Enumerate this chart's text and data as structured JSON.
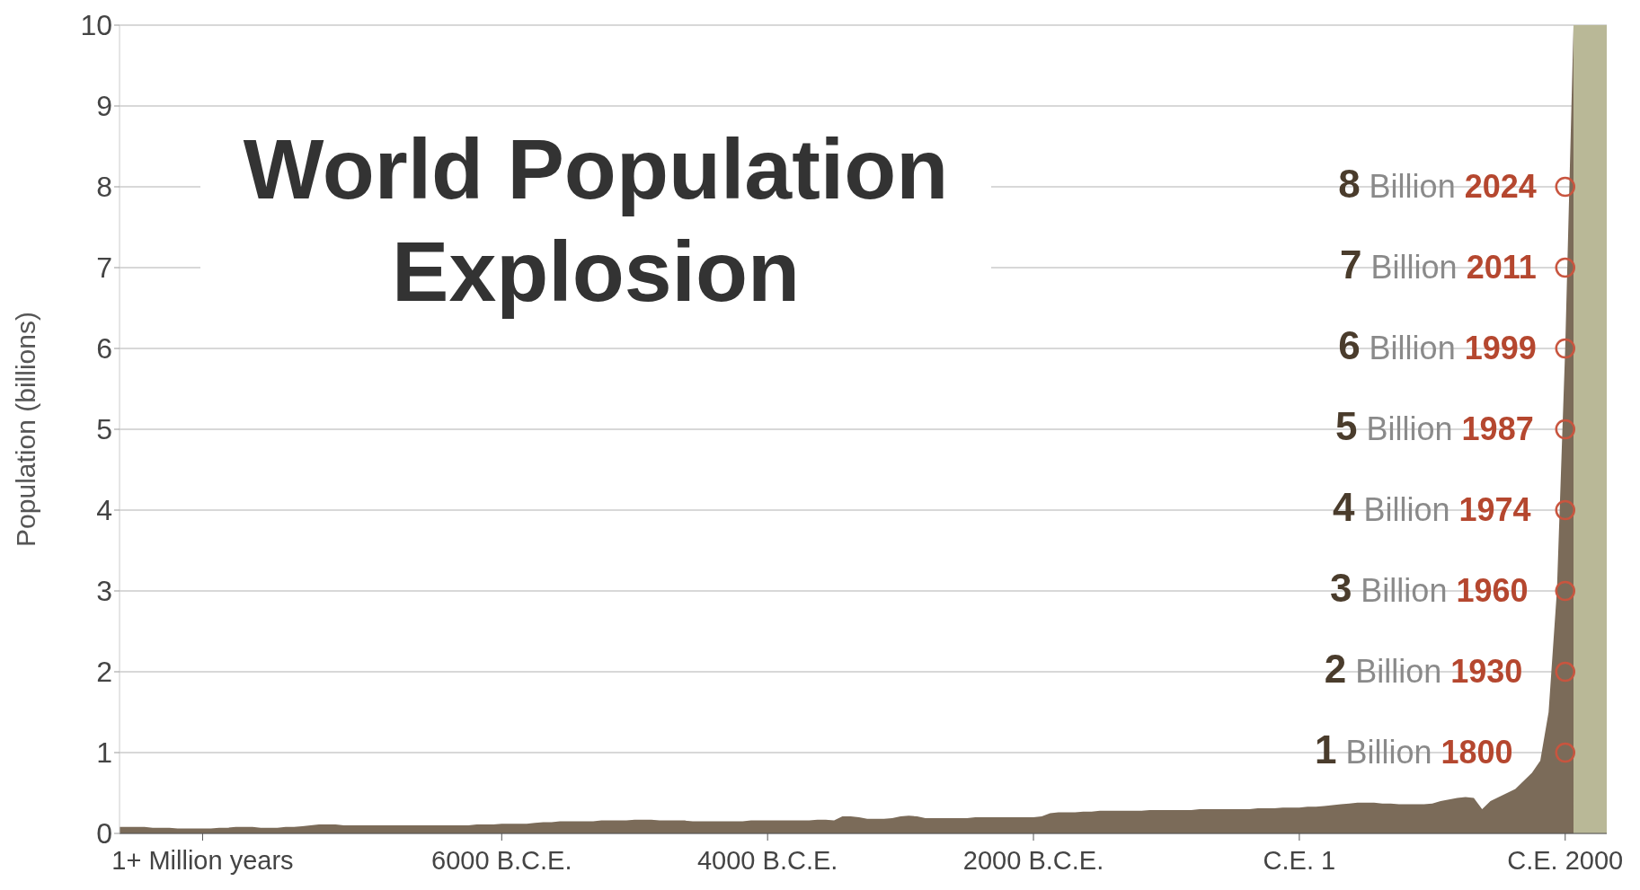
{
  "chart_data": {
    "type": "area",
    "title": "World Population Explosion",
    "ylabel": "Population (billions)",
    "categories": [
      null,
      null,
      null,
      null,
      null,
      null,
      null,
      null,
      null,
      null,
      "1+ Million years",
      null,
      null,
      null,
      null,
      null,
      null,
      null,
      null,
      null,
      null,
      null,
      null,
      null,
      null,
      null,
      null,
      null,
      null,
      null,
      null,
      null,
      null,
      null,
      null,
      null,
      null,
      null,
      null,
      null,
      null,
      null,
      null,
      null,
      null,
      null,
      "6000 B.C.E.",
      null,
      null,
      null,
      null,
      null,
      null,
      null,
      null,
      null,
      null,
      null,
      null,
      null,
      null,
      null,
      null,
      null,
      null,
      null,
      null,
      null,
      null,
      null,
      null,
      null,
      null,
      null,
      null,
      null,
      null,
      null,
      "4000 B.C.E.",
      null,
      null,
      null,
      null,
      null,
      null,
      null,
      null,
      null,
      null,
      null,
      null,
      null,
      null,
      null,
      null,
      null,
      null,
      null,
      null,
      null,
      null,
      null,
      null,
      null,
      null,
      null,
      null,
      null,
      null,
      null,
      "2000 B.C.E.",
      null,
      null,
      null,
      null,
      null,
      null,
      null,
      null,
      null,
      null,
      null,
      null,
      null,
      null,
      null,
      null,
      null,
      null,
      null,
      null,
      null,
      null,
      null,
      null,
      null,
      null,
      null,
      null,
      null,
      null,
      null,
      "C.E. 1",
      null,
      null,
      null,
      null,
      null,
      null,
      null,
      null,
      null,
      null,
      null,
      null,
      null,
      null,
      null,
      null,
      null,
      null,
      null,
      null,
      null,
      null,
      null,
      null,
      null,
      null,
      null,
      null,
      null,
      null,
      null,
      "C.E. 2000",
      null,
      null,
      null,
      null,
      null
    ],
    "series": [
      {
        "color": "#b9b897",
        "values": [
          null,
          null,
          null,
          null,
          null,
          null,
          null,
          null,
          null,
          null,
          null,
          null,
          null,
          null,
          null,
          null,
          null,
          null,
          null,
          null,
          null,
          null,
          null,
          null,
          null,
          null,
          null,
          null,
          null,
          null,
          null,
          null,
          null,
          null,
          null,
          null,
          null,
          null,
          null,
          null,
          null,
          null,
          null,
          null,
          null,
          null,
          null,
          null,
          null,
          null,
          null,
          null,
          null,
          null,
          null,
          null,
          null,
          null,
          null,
          null,
          null,
          null,
          null,
          null,
          null,
          null,
          null,
          null,
          null,
          null,
          null,
          null,
          null,
          null,
          null,
          null,
          null,
          null,
          null,
          null,
          null,
          null,
          null,
          null,
          null,
          null,
          null,
          null,
          null,
          null,
          null,
          null,
          null,
          null,
          null,
          null,
          null,
          null,
          null,
          null,
          null,
          null,
          null,
          null,
          null,
          null,
          null,
          null,
          null,
          null,
          null,
          null,
          null,
          null,
          null,
          null,
          null,
          null,
          null,
          null,
          null,
          null,
          null,
          null,
          null,
          null,
          null,
          null,
          null,
          null,
          null,
          null,
          null,
          null,
          null,
          null,
          null,
          null,
          null,
          null,
          null,
          null,
          null,
          null,
          null,
          null,
          null,
          null,
          null,
          null,
          null,
          null,
          null,
          null,
          null,
          null,
          null,
          null,
          null,
          null,
          null,
          null,
          null,
          null,
          null,
          null,
          null,
          null,
          null,
          null,
          null,
          null,
          null,
          null,
          null,
          10,
          10,
          10,
          10,
          10
        ]
      },
      {
        "color": "#7b6b59",
        "values": [
          0.08,
          0.08,
          0.08,
          0.08,
          0.07,
          0.07,
          0.07,
          0.06,
          0.06,
          0.06,
          0.06,
          0.06,
          0.07,
          0.07,
          0.08,
          0.08,
          0.08,
          0.07,
          0.07,
          0.07,
          0.08,
          0.08,
          0.09,
          0.1,
          0.11,
          0.11,
          0.11,
          0.1,
          0.1,
          0.1,
          0.1,
          0.1,
          0.1,
          0.1,
          0.1,
          0.1,
          0.1,
          0.1,
          0.1,
          0.1,
          0.1,
          0.1,
          0.1,
          0.11,
          0.11,
          0.11,
          0.12,
          0.12,
          0.12,
          0.12,
          0.13,
          0.14,
          0.14,
          0.15,
          0.15,
          0.15,
          0.15,
          0.15,
          0.16,
          0.16,
          0.16,
          0.16,
          0.17,
          0.17,
          0.17,
          0.16,
          0.16,
          0.16,
          0.16,
          0.15,
          0.15,
          0.15,
          0.15,
          0.15,
          0.15,
          0.15,
          0.16,
          0.16,
          0.16,
          0.16,
          0.16,
          0.16,
          0.16,
          0.16,
          0.17,
          0.17,
          0.16,
          0.21,
          0.21,
          0.2,
          0.18,
          0.18,
          0.18,
          0.19,
          0.21,
          0.22,
          0.21,
          0.19,
          0.19,
          0.19,
          0.19,
          0.19,
          0.19,
          0.2,
          0.2,
          0.2,
          0.2,
          0.2,
          0.2,
          0.2,
          0.2,
          0.21,
          0.25,
          0.26,
          0.26,
          0.26,
          0.27,
          0.27,
          0.28,
          0.28,
          0.28,
          0.28,
          0.28,
          0.28,
          0.29,
          0.29,
          0.29,
          0.29,
          0.29,
          0.29,
          0.3,
          0.3,
          0.3,
          0.3,
          0.3,
          0.3,
          0.3,
          0.31,
          0.31,
          0.31,
          0.32,
          0.32,
          0.32,
          0.33,
          0.33,
          0.34,
          0.35,
          0.36,
          0.37,
          0.38,
          0.38,
          0.38,
          0.37,
          0.37,
          0.36,
          0.36,
          0.36,
          0.36,
          0.37,
          0.4,
          0.42,
          0.44,
          0.45,
          0.44,
          0.3,
          0.4,
          0.45,
          0.5,
          0.55,
          0.65,
          0.75,
          0.9,
          1.5,
          3,
          6,
          10,
          null,
          null,
          null,
          null
        ]
      },
      {
        "type": "scatter",
        "color": "#c8553f",
        "marker": "circle",
        "x": [
          "C.E. 2000",
          "C.E. 2000",
          "C.E. 2000",
          "C.E. 2000",
          "C.E. 2000",
          "C.E. 2000",
          "C.E. 2000",
          "C.E. 2000"
        ],
        "values": [
          1,
          2,
          3,
          4,
          5,
          6,
          7,
          8
        ]
      }
    ],
    "ylim": [
      0,
      10
    ],
    "yticks": [
      0,
      1,
      2,
      3,
      4,
      5,
      6,
      7,
      8,
      9,
      10
    ],
    "grid": "y",
    "legend": false,
    "annotations": [
      "1 Billion 1800",
      "2 Billion 1930",
      "3 Billion 1960",
      "4 Billion 1974",
      "5 Billion 1987",
      "6 Billion 1999",
      "7 Billion 2011",
      "8 Billion 2024"
    ]
  }
}
